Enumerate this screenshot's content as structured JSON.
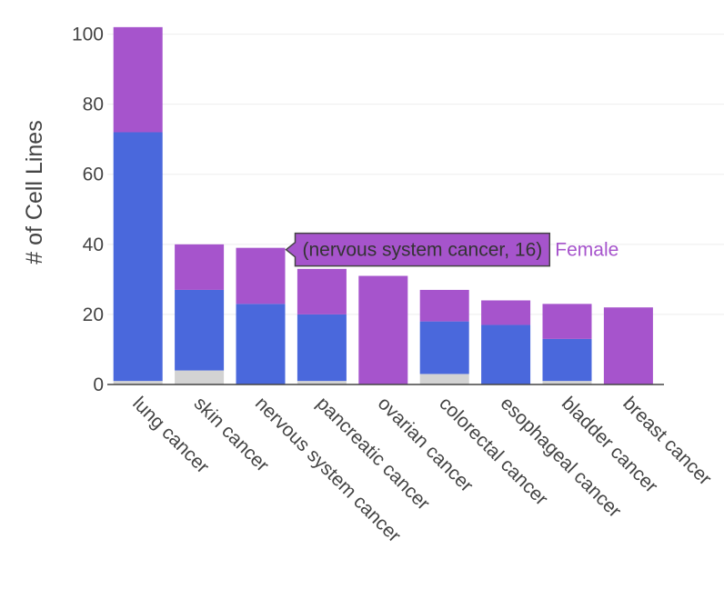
{
  "chart_data": {
    "type": "bar",
    "stacked": true,
    "ylabel": "# of Cell Lines",
    "xlabel": "",
    "ylim": [
      0,
      103
    ],
    "yticks": [
      0,
      20,
      40,
      60,
      80,
      100
    ],
    "grid": true,
    "categories": [
      "lung cancer",
      "skin cancer",
      "nervous system cancer",
      "pancreatic cancer",
      "ovarian cancer",
      "colorectal cancer",
      "esophageal cancer",
      "bladder cancer",
      "breast cancer"
    ],
    "series": [
      {
        "name": "",
        "color": "#d3d3d3",
        "values": [
          1,
          4,
          0,
          1,
          0,
          3,
          0,
          1,
          0
        ]
      },
      {
        "name": "",
        "color": "#4a68dc",
        "values": [
          71,
          23,
          23,
          19,
          0,
          15,
          17,
          12,
          0
        ]
      },
      {
        "name": "Female",
        "color": "#a654cc",
        "values": [
          30,
          13,
          16,
          13,
          31,
          9,
          7,
          10,
          22
        ]
      }
    ],
    "hover": {
      "category_index": 2,
      "series_index": 2,
      "text": "(nervous system cancer, 16)",
      "series_name": "Female"
    }
  }
}
